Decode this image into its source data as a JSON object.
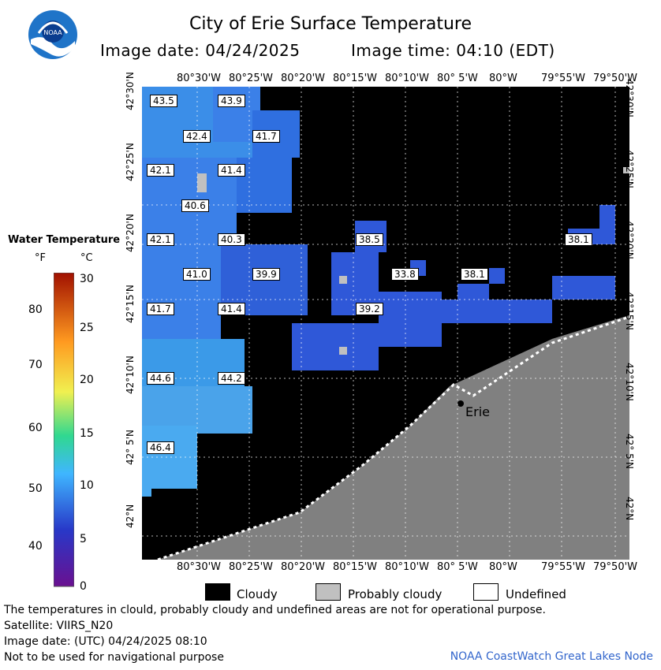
{
  "header": {
    "title": "City of Erie Surface Temperature",
    "image_date": "Image date: 04/24/2025",
    "image_time": "Image time: 04:10 (EDT)"
  },
  "map": {
    "lon_labels_top": [
      "80°30'W",
      "80°25'W",
      "80°20'W",
      "80°15'W",
      "80°10'W",
      "80° 5'W",
      "80°W",
      "79°55'W",
      "79°50'W"
    ],
    "lon_labels_bottom": [
      "80°30'W",
      "80°25'W",
      "80°20'W",
      "80°15'W",
      "80°10'W",
      "80° 5'W",
      "80°W",
      "79°55'W",
      "79°50'W"
    ],
    "lat_labels": [
      "42°30'N",
      "42°25'N",
      "42°20'N",
      "42°15'N",
      "42°10'N",
      "42° 5'N",
      "42°N"
    ],
    "city_label": "Erie",
    "temp_labels": [
      "43.5",
      "43.9",
      "42.4",
      "41.7",
      "42.1",
      "41.4",
      "40.6",
      "42.1",
      "40.3",
      "38.5",
      "38.1",
      "41.0",
      "39.9",
      "33.8",
      "38.1",
      "41.7",
      "41.4",
      "39.2",
      "44.6",
      "44.2",
      "46.4"
    ],
    "colors": {
      "cloud": "#000000",
      "land": "#808080",
      "probably_cloudy": "#c0c0c0",
      "water_warm": "#3b8ee8",
      "water_mid": "#2f6fe0",
      "water_cool": "#2f4fd0"
    }
  },
  "legend": {
    "title": "Water Temperature",
    "unit_f": "°F",
    "unit_c": "°C",
    "f_ticks": [
      "80",
      "70",
      "60",
      "50",
      "40"
    ],
    "c_ticks": [
      "30",
      "25",
      "20",
      "15",
      "10",
      "5",
      "0"
    ]
  },
  "key": {
    "cloudy": "Cloudy",
    "probably_cloudy": "Probably cloudy",
    "undefined": "Undefined"
  },
  "footer": {
    "line1": "The temperatures in clould, probably cloudy and undefined areas are not for operational purpose.",
    "line2": "Satellite: VIIRS_N20",
    "line3": "Image date: (UTC) 04/24/2025  08:10",
    "line4": "Not to be used for navigational purpose",
    "node": "NOAA CoastWatch Great Lakes Node"
  }
}
